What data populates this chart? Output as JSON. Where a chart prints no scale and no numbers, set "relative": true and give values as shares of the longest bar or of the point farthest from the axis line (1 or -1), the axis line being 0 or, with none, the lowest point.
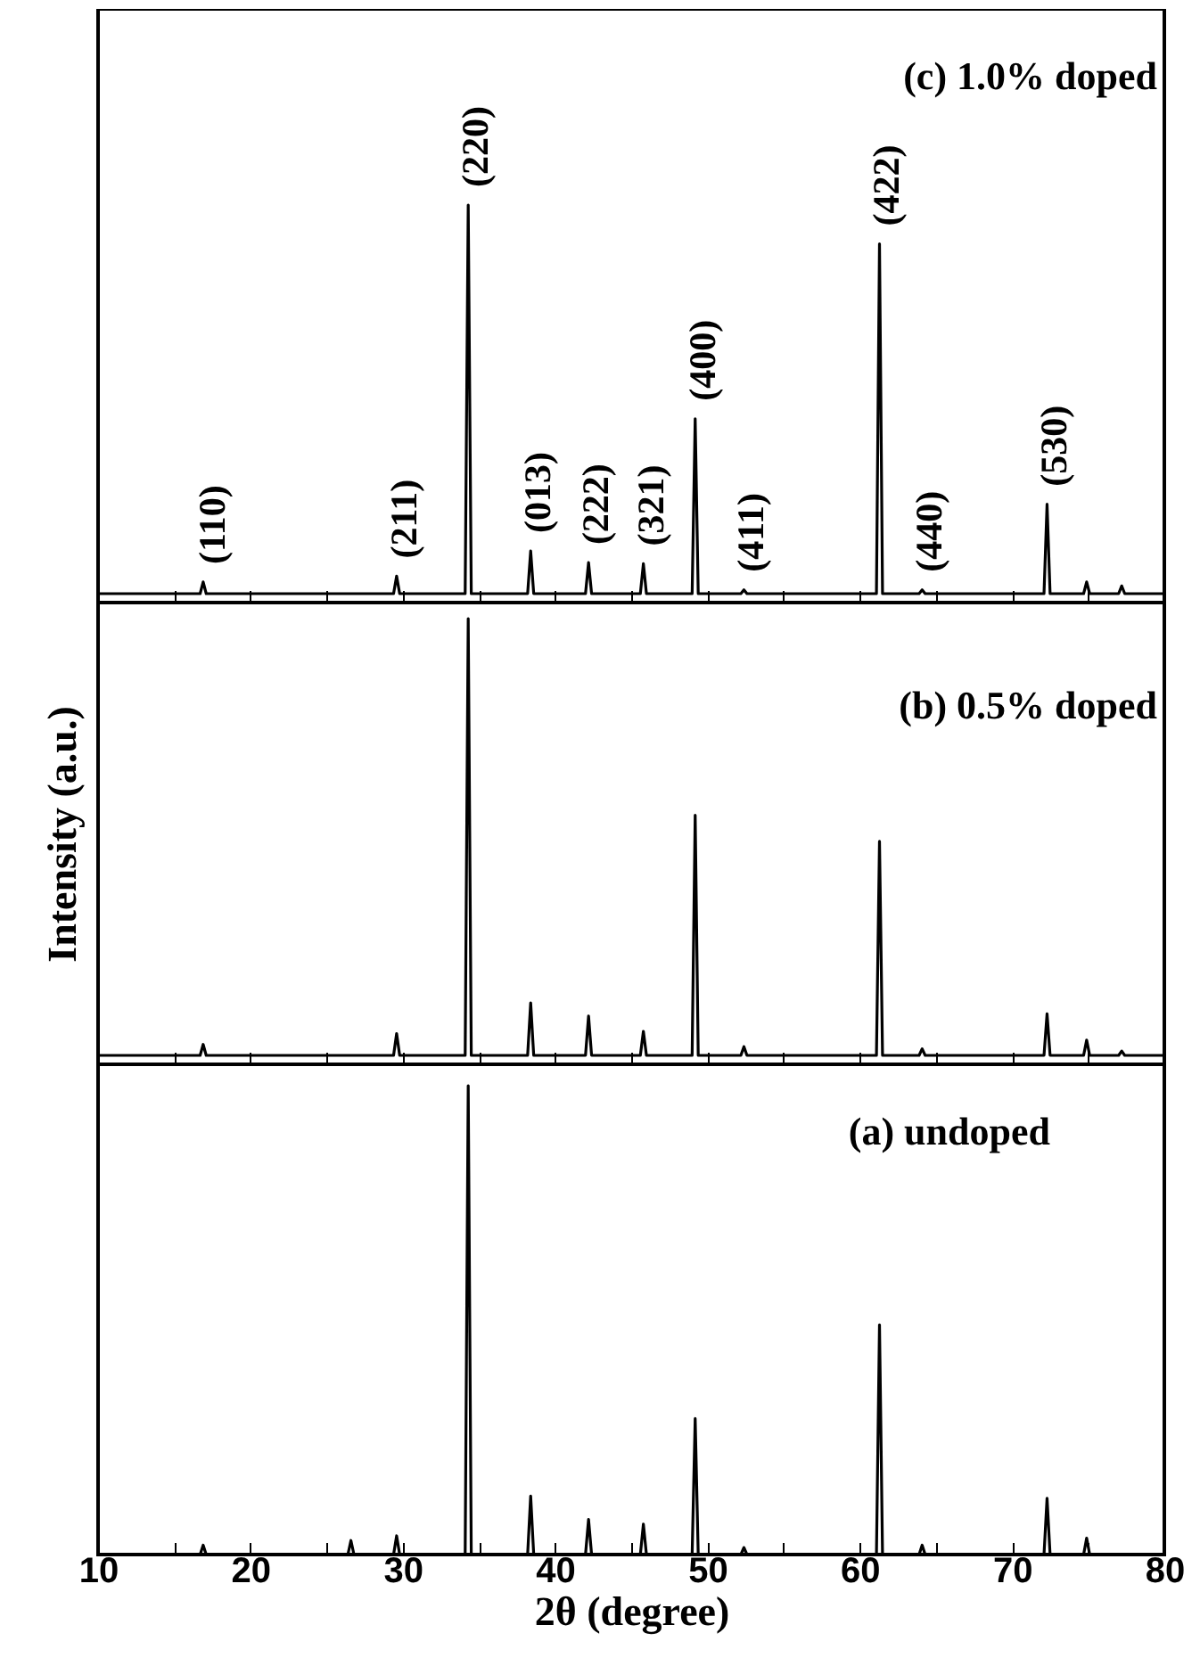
{
  "chart_data": [
    {
      "type": "line",
      "relative": true,
      "tick_labels": false,
      "xlim": [
        10,
        80
      ],
      "xticks": [
        10,
        {
          "value": 15,
          "label": null
        },
        20,
        {
          "value": 25,
          "label": null
        },
        30,
        {
          "value": 35,
          "label": null
        },
        40,
        {
          "value": 45,
          "label": null
        },
        50,
        {
          "value": 55,
          "label": null
        },
        60,
        {
          "value": 65,
          "label": null
        },
        70,
        {
          "value": 75,
          "label": null
        },
        80
      ],
      "x": [
        10,
        16.7,
        16.9,
        17.1,
        29.4,
        29.6,
        29.8,
        34.1,
        34.3,
        34.5,
        38.2,
        38.4,
        38.6,
        42.0,
        42.2,
        42.4,
        45.6,
        45.8,
        46.0,
        49.0,
        49.2,
        49.4,
        52.2,
        52.4,
        52.6,
        61.1,
        61.3,
        61.5,
        63.9,
        64.1,
        64.3,
        72.1,
        72.3,
        72.5,
        74.7,
        74.9,
        75.1,
        77.0,
        77.2,
        77.4,
        80
      ],
      "series": [
        {
          "color": "#000000",
          "values": [
            0,
            0,
            0.03,
            0,
            0,
            0.045,
            0,
            0,
            1,
            0,
            0,
            0.11,
            0,
            0,
            0.08,
            0,
            0,
            0.077,
            0,
            0,
            0.45,
            0,
            0,
            0.01,
            0,
            0,
            0.9,
            0,
            0,
            0.01,
            0,
            0,
            0.23,
            0,
            0,
            0.03,
            0,
            0,
            0.02,
            0,
            0
          ]
        }
      ],
      "annotations": [
        "(c) 1.0% doped",
        {
          "text": "(110)",
          "x": 17,
          "y": 0.03
        },
        {
          "text": "(211)",
          "x": 29.6,
          "y": 0.045
        },
        {
          "text": "(220)",
          "x": 34.3,
          "y": 1
        },
        {
          "text": "(013)",
          "x": 38.4,
          "y": 0.11
        },
        {
          "text": "(222)",
          "x": 42.2,
          "y": 0.08
        },
        {
          "text": "(321)",
          "x": 45.8,
          "y": 0.077
        },
        {
          "text": "(400)",
          "x": 49.2,
          "y": 0.45
        },
        {
          "text": "(411)",
          "x": 52.4,
          "y": 0.01
        },
        {
          "text": "(422)",
          "x": 61.3,
          "y": 0.9
        },
        {
          "text": "(440)",
          "x": 64.1,
          "y": 0.01
        },
        {
          "text": "(530)",
          "x": 72.3,
          "y": 0.23
        }
      ]
    },
    {
      "type": "line",
      "relative": true,
      "tick_labels": false,
      "ylabel": "Intensity (a.u.)",
      "xlim": [
        10,
        80
      ],
      "xticks": [
        10,
        {
          "value": 15,
          "label": null
        },
        20,
        {
          "value": 25,
          "label": null
        },
        30,
        {
          "value": 35,
          "label": null
        },
        40,
        {
          "value": 45,
          "label": null
        },
        50,
        {
          "value": 55,
          "label": null
        },
        60,
        {
          "value": 65,
          "label": null
        },
        70,
        {
          "value": 75,
          "label": null
        },
        80
      ],
      "x": [
        10,
        16.7,
        16.9,
        17.1,
        29.4,
        29.6,
        29.8,
        34.1,
        34.3,
        34.5,
        38.2,
        38.4,
        38.6,
        42.0,
        42.2,
        42.4,
        45.6,
        45.8,
        46.0,
        49.0,
        49.2,
        49.4,
        52.2,
        52.4,
        52.6,
        61.1,
        61.3,
        61.5,
        63.9,
        64.1,
        64.3,
        72.1,
        72.3,
        72.5,
        74.7,
        74.9,
        75.1,
        77.0,
        77.2,
        77.4,
        80
      ],
      "series": [
        {
          "color": "#000000",
          "values": [
            0,
            0,
            0.025,
            0,
            0,
            0.05,
            0,
            0,
            1,
            0,
            0,
            0.12,
            0,
            0,
            0.09,
            0,
            0,
            0.055,
            0,
            0,
            0.55,
            0,
            0,
            0.02,
            0,
            0,
            0.49,
            0,
            0,
            0.015,
            0,
            0,
            0.095,
            0,
            0,
            0.035,
            0,
            0,
            0.01,
            0,
            0
          ]
        }
      ],
      "annotations": [
        "(b) 0.5% doped"
      ]
    },
    {
      "type": "line",
      "relative": true,
      "tick_labels": "x",
      "xlabel": "2θ (degree)",
      "xlim": [
        10,
        80
      ],
      "xticks": [
        10,
        {
          "value": 15,
          "label": null
        },
        20,
        {
          "value": 25,
          "label": null
        },
        30,
        {
          "value": 35,
          "label": null
        },
        40,
        {
          "value": 45,
          "label": null
        },
        50,
        {
          "value": 55,
          "label": null
        },
        60,
        {
          "value": 65,
          "label": null
        },
        70,
        {
          "value": 75,
          "label": null
        },
        80
      ],
      "x": [
        10,
        16.7,
        16.9,
        17.1,
        26.4,
        26.6,
        26.8,
        29.4,
        29.6,
        29.8,
        34.1,
        34.3,
        34.5,
        38.2,
        38.4,
        38.6,
        42.0,
        42.2,
        42.4,
        45.6,
        45.8,
        46.0,
        49.0,
        49.2,
        49.4,
        52.2,
        52.4,
        52.6,
        61.1,
        61.3,
        61.5,
        63.9,
        64.1,
        64.3,
        72.1,
        72.3,
        72.5,
        74.7,
        74.9,
        75.1,
        80
      ],
      "series": [
        {
          "color": "#000000",
          "values": [
            0,
            0,
            0.02,
            0,
            0,
            0.03,
            0,
            0,
            0.04,
            0,
            0,
            1,
            0,
            0,
            0.125,
            0,
            0,
            0.075,
            0,
            0,
            0.065,
            0,
            0,
            0.29,
            0,
            0,
            0.015,
            0,
            0,
            0.49,
            0,
            0,
            0.02,
            0,
            0,
            0.12,
            0,
            0,
            0.035,
            0,
            0
          ]
        }
      ],
      "annotations": [
        "(a) undoped"
      ]
    }
  ]
}
